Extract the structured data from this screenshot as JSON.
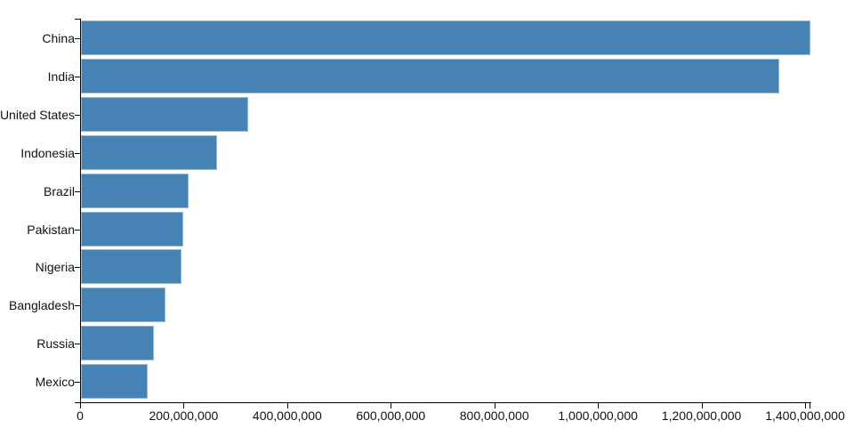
{
  "chart_data": {
    "type": "bar",
    "orientation": "horizontal",
    "title": "",
    "categories": [
      "China",
      "India",
      "United States",
      "Indonesia",
      "Brazil",
      "Pakistan",
      "Nigeria",
      "Bangladesh",
      "Russia",
      "Mexico"
    ],
    "values": [
      1410000000,
      1350000000,
      325000000,
      265000000,
      210000000,
      200000000,
      195000000,
      165000000,
      143000000,
      130000000
    ],
    "xlim": [
      0,
      1410000000
    ],
    "x_ticks": [
      0,
      200000000,
      400000000,
      600000000,
      800000000,
      1000000000,
      1200000000,
      1400000000
    ],
    "x_tick_labels": [
      "0",
      "200,000,000",
      "400,000,000",
      "600,000,000",
      "800,000,000",
      "1,000,000,000",
      "1,200,000,000",
      "1,400,000,000"
    ],
    "grid": false,
    "legend_position": "none",
    "colors": {
      "bar": "#4682b4",
      "bar_edge": "rgba(255,255,255,0.45)",
      "axis": "#000000",
      "text": "#111111",
      "background": "#ffffff"
    }
  }
}
